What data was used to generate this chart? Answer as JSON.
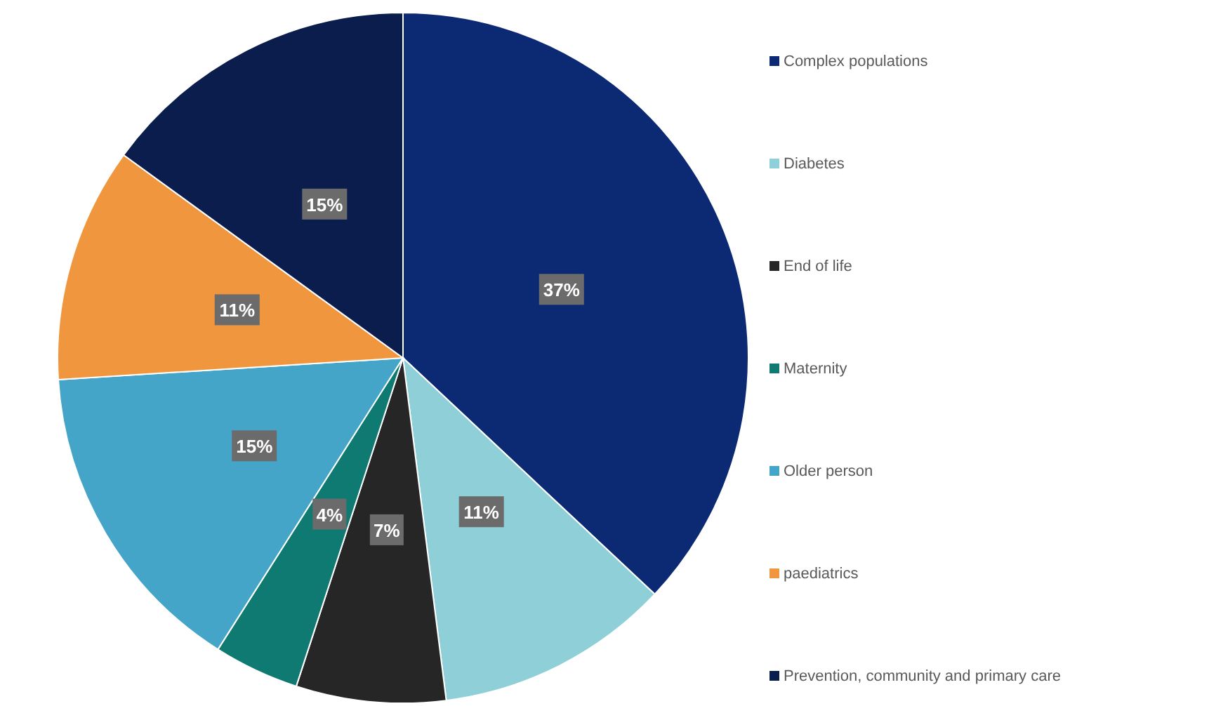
{
  "chart_data": {
    "type": "pie",
    "categories": [
      "Complex populations",
      "Diabetes",
      "End of life",
      "Maternity",
      "Older person",
      "paediatrics",
      "Prevention, community and primary care"
    ],
    "values": [
      37,
      11,
      7,
      4,
      15,
      11,
      15
    ],
    "colors": [
      "#0c2a73",
      "#8fd0d8",
      "#262626",
      "#0e7a72",
      "#45a5c8",
      "#f0963e",
      "#0a1d4d"
    ],
    "value_labels": [
      "37%",
      "11%",
      "7%",
      "4%",
      "15%",
      "11%",
      "15%"
    ],
    "legend": "right"
  }
}
